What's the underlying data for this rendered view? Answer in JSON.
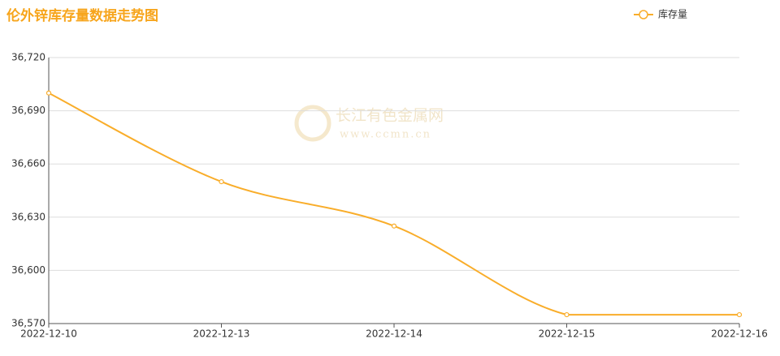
{
  "chart_data": {
    "type": "line",
    "title": "伦外锌库存量数据走势图",
    "categories": [
      "2022-12-10",
      "2022-12-13",
      "2022-12-14",
      "2022-12-15",
      "2022-12-16"
    ],
    "series": [
      {
        "name": "库存量",
        "color": "#f9ad2a",
        "values": [
          36700,
          36650,
          36625,
          36575,
          36575
        ]
      }
    ],
    "ylim": [
      36570,
      36720
    ],
    "yticks": [
      {
        "value": 36570,
        "label": "36,570"
      },
      {
        "value": 36600,
        "label": "36,600"
      },
      {
        "value": 36630,
        "label": "36,630"
      },
      {
        "value": 36660,
        "label": "36,660"
      },
      {
        "value": 36690,
        "label": "36,690"
      },
      {
        "value": 36720,
        "label": "36,720"
      }
    ],
    "grid": true,
    "smooth": true,
    "legend": "top-right",
    "annotations": [
      "长江有色金属网",
      "www.ccmn.cn"
    ]
  }
}
